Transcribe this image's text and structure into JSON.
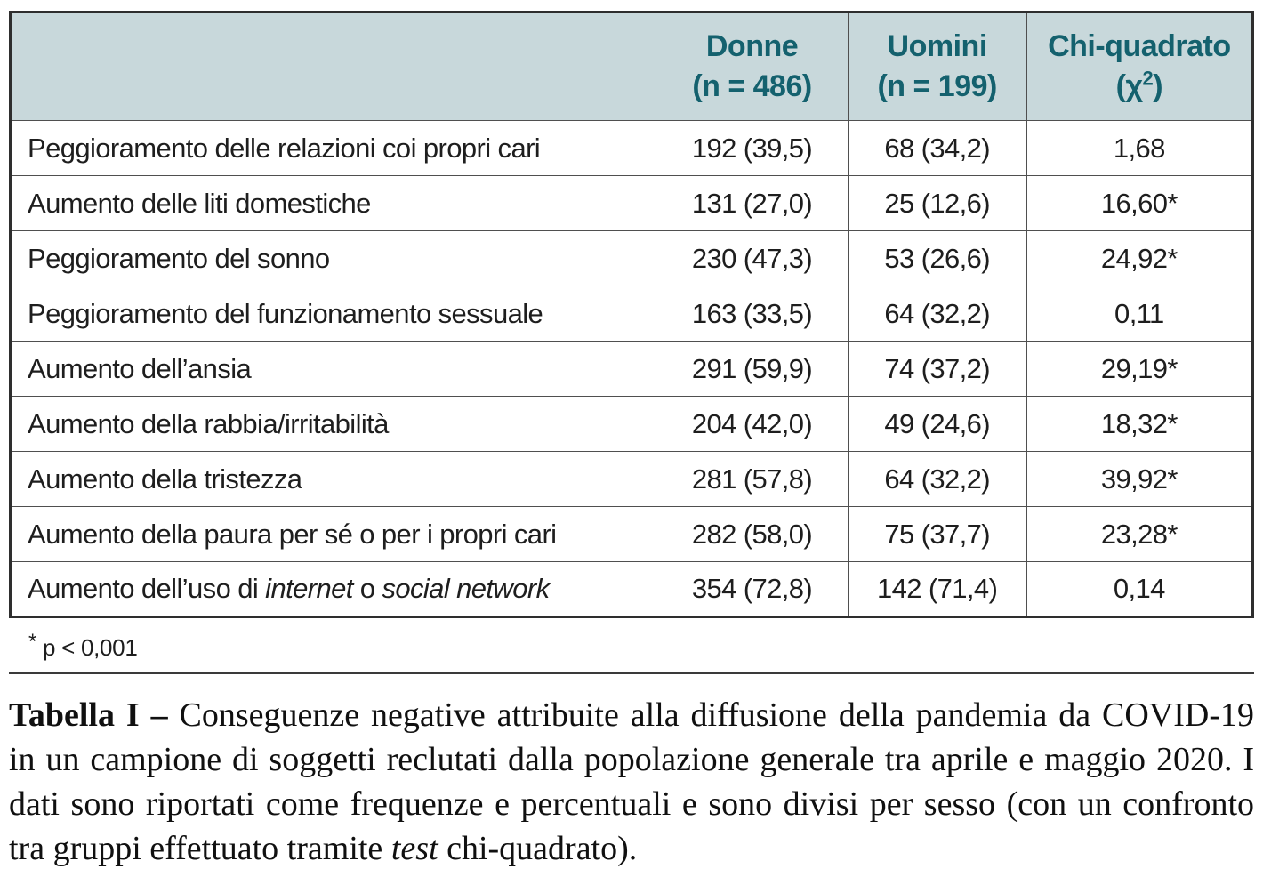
{
  "colors": {
    "header_bg": "#c8d8db",
    "header_text": "#14616e",
    "body_text": "#1e1e1e",
    "border": "#4f4f4f"
  },
  "table": {
    "header": {
      "empty": "",
      "donne_line1": "Donne",
      "donne_line2": "(n = 486)",
      "uomini_line1": "Uomini",
      "uomini_line2": "(n = 199)",
      "chi_line1": "Chi-quadrato",
      "chi_line2_open": "(χ",
      "chi_sup": "2",
      "chi_line2_close": ")"
    },
    "rows": [
      {
        "label": "Peggioramento delle relazioni coi propri cari",
        "donne": "192 (39,5)",
        "uomini": "68 (34,2)",
        "chi": "1,68"
      },
      {
        "label": "Aumento delle liti domestiche",
        "donne": "131 (27,0)",
        "uomini": "25 (12,6)",
        "chi": "16,60*"
      },
      {
        "label": "Peggioramento del sonno",
        "donne": "230 (47,3)",
        "uomini": "53 (26,6)",
        "chi": "24,92*"
      },
      {
        "label": "Peggioramento del funzionamento sessuale",
        "donne": "163 (33,5)",
        "uomini": "64 (32,2)",
        "chi": "0,11"
      },
      {
        "label": "Aumento dell’ansia",
        "donne": "291 (59,9)",
        "uomini": "74 (37,2)",
        "chi": "29,19*"
      },
      {
        "label": "Aumento della rabbia/irritabilità",
        "donne": "204 (42,0)",
        "uomini": "49 (24,6)",
        "chi": "18,32*"
      },
      {
        "label": "Aumento della tristezza",
        "donne": "281 (57,8)",
        "uomini": "64 (32,2)",
        "chi": "39,92*"
      },
      {
        "label": "Aumento della paura per sé o per i propri cari",
        "donne": "282 (58,0)",
        "uomini": "75 (37,7)",
        "chi": "23,28*"
      },
      {
        "label_parts": {
          "p0": "Aumento dell’uso di ",
          "i1": "internet",
          "p1": " o ",
          "i2": "social network"
        },
        "donne": "354 (72,8)",
        "uomini": "142 (71,4)",
        "chi": "0,14"
      }
    ],
    "footnote": {
      "star": "*",
      "text": "p < 0,001"
    }
  },
  "caption": {
    "label": "Tabella I –",
    "body_1": " Conseguenze negative attribuite alla diffusione della pandemia da COVID-19 in un campione di soggetti reclutati dalla popolazione generale tra aprile e maggio 2020. I dati sono riportati come frequenze e percentuali e sono divisi per sesso (con un confronto tra gruppi effettuato tramite ",
    "italic_word": "test",
    "body_2": " chi-quadrato)."
  }
}
